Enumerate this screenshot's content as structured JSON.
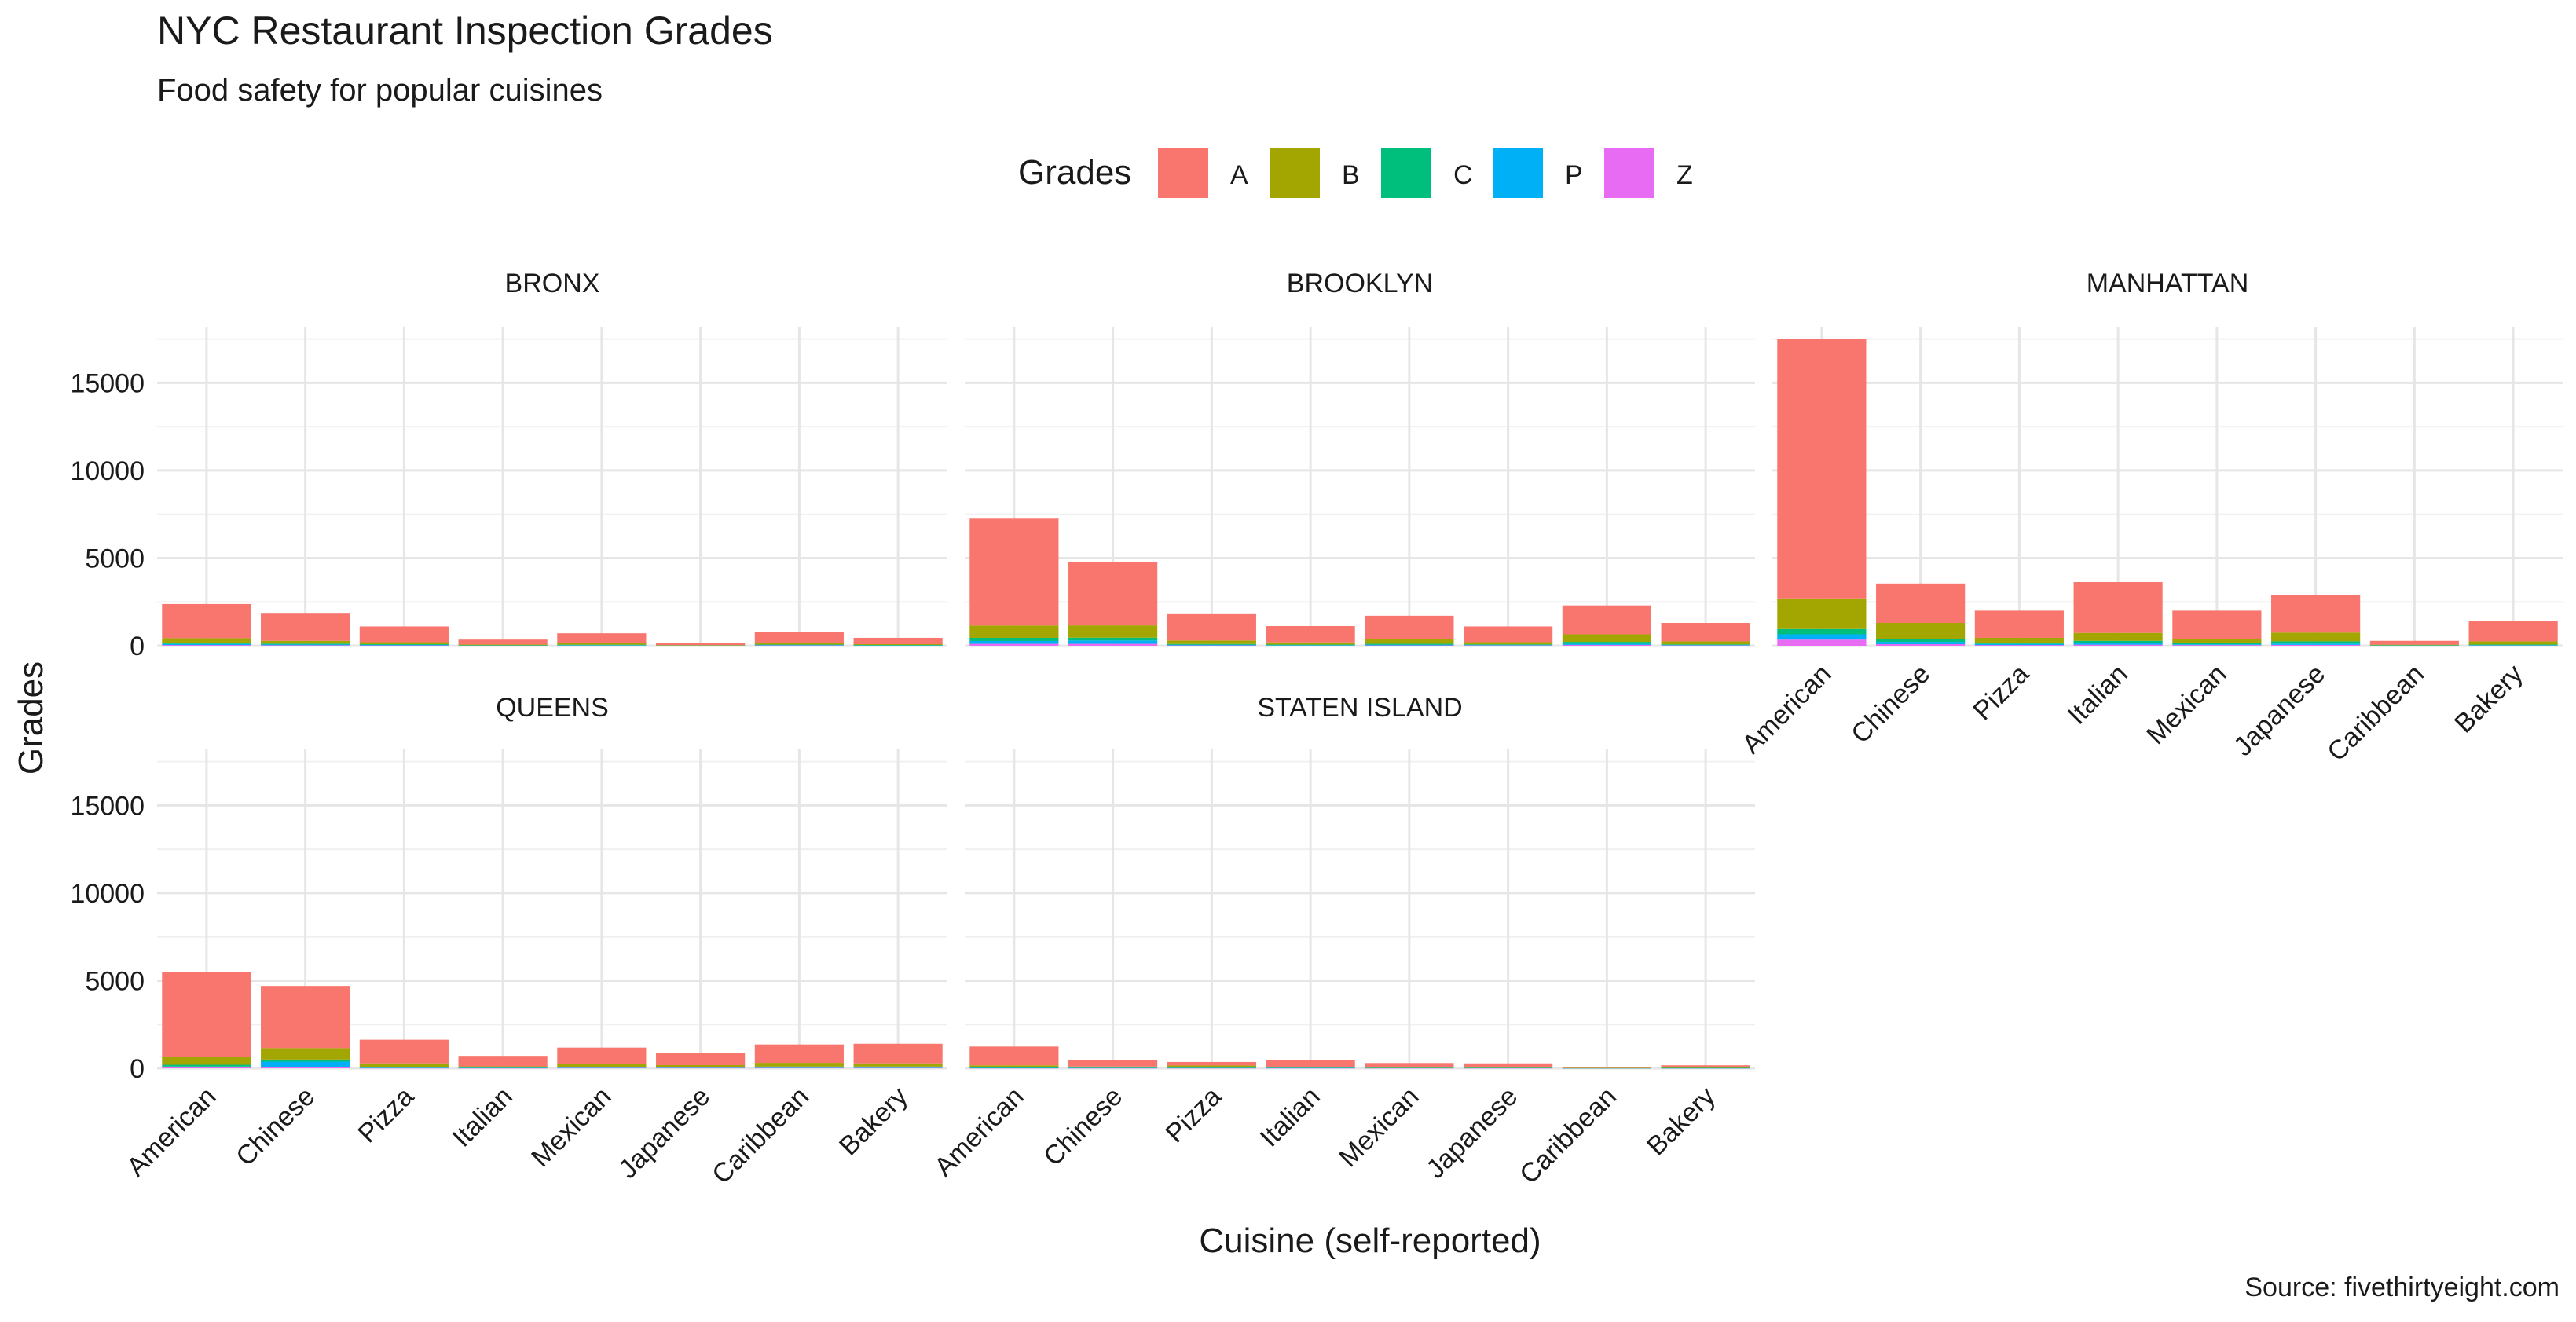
{
  "chart_data": {
    "type": "bar",
    "stacked": true,
    "title": "NYC Restaurant Inspection Grades",
    "subtitle": "Food safety for popular cuisines",
    "xlabel": "Cuisine (self-reported)",
    "ylabel": "Grades",
    "caption": "Source: fivethirtyeight.com",
    "legend": {
      "title": "Grades",
      "position": "top",
      "keys": [
        "A",
        "B",
        "C",
        "P",
        "Z"
      ]
    },
    "colors": {
      "A": "#F8766D",
      "B": "#A3A500",
      "C": "#00BF7D",
      "P": "#00B0F6",
      "Z": "#E76BF3"
    },
    "categories": [
      "American",
      "Chinese",
      "Pizza",
      "Italian",
      "Mexican",
      "Japanese",
      "Caribbean",
      "Bakery"
    ],
    "yticks": [
      "0",
      "5000",
      "10000",
      "15000"
    ],
    "ylim": [
      0,
      18200
    ],
    "grid": true,
    "panels": [
      {
        "name": "BRONX",
        "stacks": [
          {
            "A": 1950,
            "B": 250,
            "C": 80,
            "P": 60,
            "Z": 40
          },
          {
            "A": 1550,
            "B": 160,
            "C": 50,
            "P": 40,
            "Z": 30
          },
          {
            "A": 900,
            "B": 110,
            "C": 40,
            "P": 30,
            "Z": 20
          },
          {
            "A": 280,
            "B": 40,
            "C": 10,
            "P": 10,
            "Z": 10
          },
          {
            "A": 560,
            "B": 90,
            "C": 30,
            "P": 20,
            "Z": 10
          },
          {
            "A": 130,
            "B": 20,
            "C": 5,
            "P": 5,
            "Z": 5
          },
          {
            "A": 610,
            "B": 90,
            "C": 30,
            "P": 20,
            "Z": 20
          },
          {
            "A": 360,
            "B": 50,
            "C": 20,
            "P": 10,
            "Z": 10
          }
        ]
      },
      {
        "name": "BROOKLYN",
        "stacks": [
          {
            "A": 6100,
            "B": 700,
            "C": 180,
            "P": 160,
            "Z": 110
          },
          {
            "A": 3600,
            "B": 700,
            "C": 160,
            "P": 190,
            "Z": 110
          },
          {
            "A": 1500,
            "B": 200,
            "C": 50,
            "P": 30,
            "Z": 20
          },
          {
            "A": 930,
            "B": 120,
            "C": 40,
            "P": 20,
            "Z": 10
          },
          {
            "A": 1350,
            "B": 250,
            "C": 60,
            "P": 30,
            "Z": 20
          },
          {
            "A": 900,
            "B": 120,
            "C": 40,
            "P": 20,
            "Z": 20
          },
          {
            "A": 1650,
            "B": 430,
            "C": 110,
            "P": 60,
            "Z": 50
          },
          {
            "A": 1050,
            "B": 170,
            "C": 40,
            "P": 20,
            "Z": 20
          }
        ]
      },
      {
        "name": "MANHATTAN",
        "stacks": [
          {
            "A": 14800,
            "B": 1750,
            "C": 300,
            "P": 300,
            "Z": 350
          },
          {
            "A": 2250,
            "B": 900,
            "C": 180,
            "P": 130,
            "Z": 90
          },
          {
            "A": 1550,
            "B": 270,
            "C": 80,
            "P": 60,
            "Z": 40
          },
          {
            "A": 2900,
            "B": 450,
            "C": 120,
            "P": 100,
            "Z": 60
          },
          {
            "A": 1600,
            "B": 260,
            "C": 60,
            "P": 40,
            "Z": 40
          },
          {
            "A": 2150,
            "B": 500,
            "C": 130,
            "P": 70,
            "Z": 50
          },
          {
            "A": 220,
            "B": 30,
            "C": 10,
            "P": 10,
            "Z": 10
          },
          {
            "A": 1150,
            "B": 180,
            "C": 40,
            "P": 20,
            "Z": 10
          }
        ]
      },
      {
        "name": "QUEENS",
        "stacks": [
          {
            "A": 4850,
            "B": 450,
            "C": 100,
            "P": 50,
            "Z": 50
          },
          {
            "A": 3550,
            "B": 650,
            "C": 120,
            "P": 300,
            "Z": 80
          },
          {
            "A": 1350,
            "B": 200,
            "C": 50,
            "P": 20,
            "Z": 10
          },
          {
            "A": 600,
            "B": 70,
            "C": 20,
            "P": 10,
            "Z": 10
          },
          {
            "A": 920,
            "B": 170,
            "C": 50,
            "P": 20,
            "Z": 20
          },
          {
            "A": 700,
            "B": 100,
            "C": 40,
            "P": 20,
            "Z": 20
          },
          {
            "A": 1050,
            "B": 210,
            "C": 60,
            "P": 20,
            "Z": 20
          },
          {
            "A": 1120,
            "B": 180,
            "C": 60,
            "P": 20,
            "Z": 20
          }
        ]
      },
      {
        "name": "STATEN ISLAND",
        "stacks": [
          {
            "A": 1070,
            "B": 120,
            "C": 30,
            "P": 10,
            "Z": 10
          },
          {
            "A": 370,
            "B": 60,
            "C": 20,
            "P": 10,
            "Z": 10
          },
          {
            "A": 200,
            "B": 120,
            "C": 20,
            "P": 10,
            "Z": 10
          },
          {
            "A": 380,
            "B": 50,
            "C": 20,
            "P": 10,
            "Z": 10
          },
          {
            "A": 230,
            "B": 40,
            "C": 10,
            "P": 10,
            "Z": 10
          },
          {
            "A": 210,
            "B": 40,
            "C": 10,
            "P": 10,
            "Z": 10
          },
          {
            "A": 20,
            "B": 5,
            "C": 5,
            "P": 5,
            "Z": 5
          },
          {
            "A": 120,
            "B": 30,
            "C": 10,
            "P": 5,
            "Z": 5
          }
        ]
      }
    ]
  }
}
